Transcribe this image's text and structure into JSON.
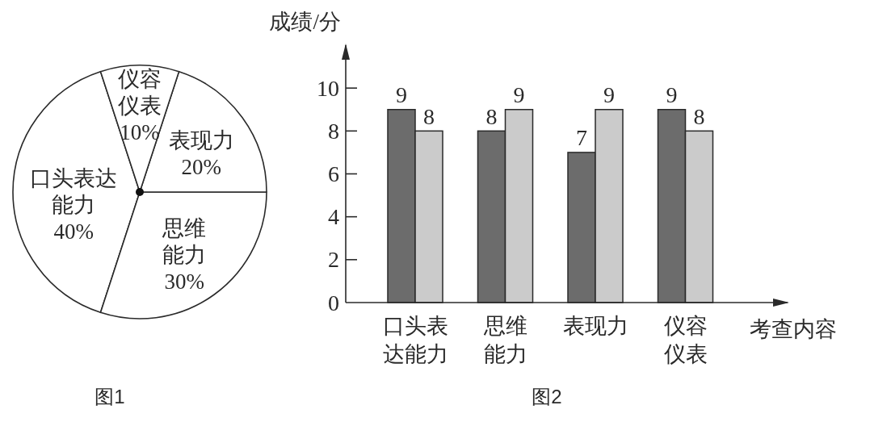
{
  "chart_data": [
    {
      "type": "pie",
      "title": "图1",
      "categories": [
        "口头表达能力",
        "思维能力",
        "表现力",
        "仪容仪表"
      ],
      "values": [
        40,
        30,
        20,
        10
      ],
      "colors": [
        "#ffffff",
        "#ffffff",
        "#ffffff",
        "#ffffff"
      ],
      "value_labels": [
        "40%",
        "30%",
        "20%",
        "10%"
      ]
    },
    {
      "type": "bar",
      "title": "图2",
      "xlabel": "考查内容",
      "ylabel": "成绩/分",
      "categories": [
        "口头表达能力",
        "思维能力",
        "表现力",
        "仪容仪表"
      ],
      "series": [
        {
          "color": "#6c6c6c",
          "values": [
            9,
            8,
            7,
            9
          ]
        },
        {
          "color": "#cbcbcb",
          "values": [
            8,
            9,
            9,
            8
          ]
        }
      ],
      "ylim": [
        0,
        12
      ],
      "yticks": [
        0,
        2,
        4,
        6,
        8,
        10
      ],
      "data_labels": true
    }
  ]
}
